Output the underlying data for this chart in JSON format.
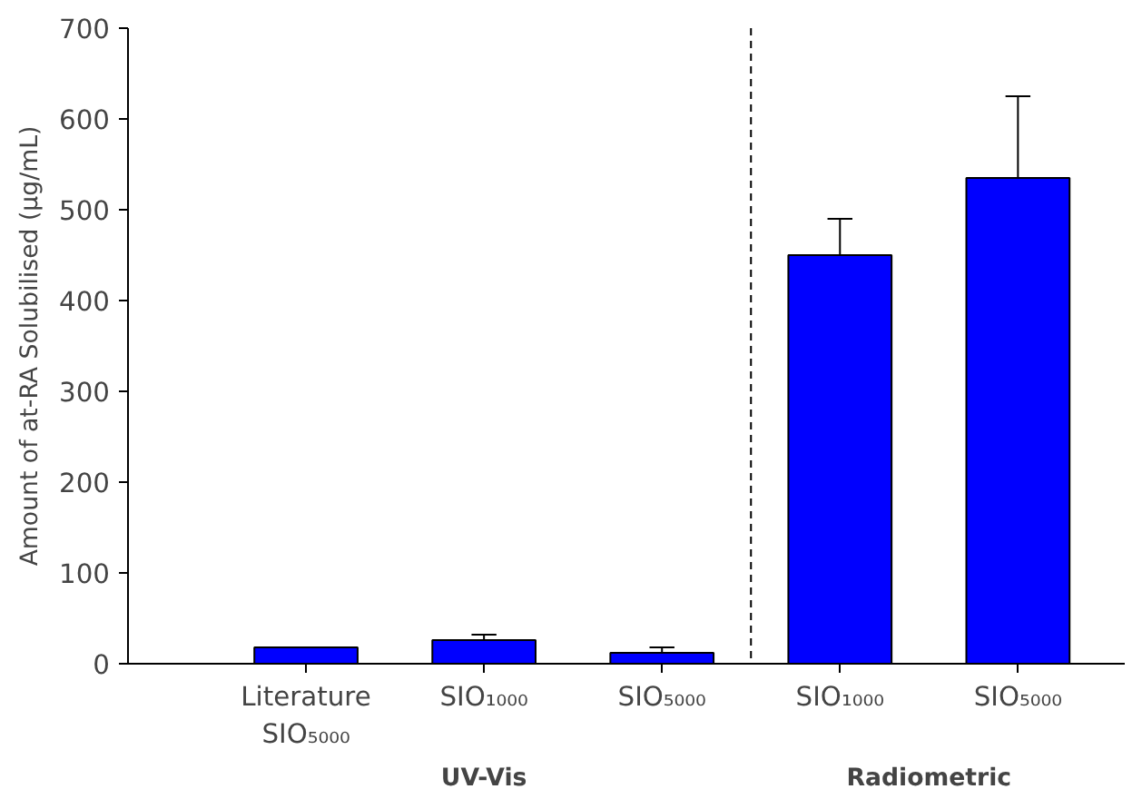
{
  "chart_data": {
    "type": "bar",
    "categories": [
      "Literature\nSIO₅₀₀₀",
      "SIO₁₀₀₀",
      "SIO₅₀₀₀",
      "SIO₁₀₀₀",
      "SIO₅₀₀₀"
    ],
    "values": [
      18,
      26,
      12,
      450,
      535
    ],
    "errors": [
      null,
      [
        26,
        32
      ],
      [
        12,
        18
      ],
      [
        450,
        490
      ],
      [
        535,
        625
      ]
    ],
    "color": "#0000ff",
    "ylabel": "Amount of at-RA Solubilised (µg/mL)",
    "ylim": [
      0,
      700
    ],
    "yticks": [
      0,
      100,
      200,
      300,
      400,
      500,
      600,
      700
    ],
    "annotations": [
      "UV-Vis",
      "Radiometric"
    ],
    "grid": false
  }
}
